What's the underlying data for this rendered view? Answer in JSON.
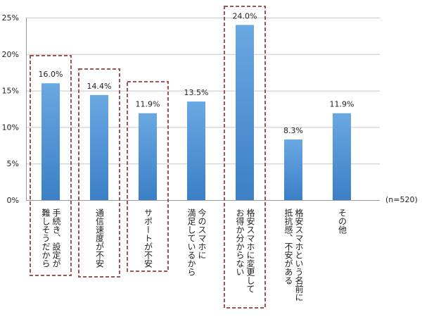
{
  "chart_data": {
    "type": "bar",
    "categories": [
      "手続き、設定が\n難しそうだから",
      "通信速度が不安",
      "サポートが不安",
      "今のスマホに\n満足しているから",
      "格安スマホに変更して\nお得か分からない",
      "格安スマホという名前に\n抵抗感、不安がある",
      "その他"
    ],
    "values": [
      16.0,
      14.4,
      11.9,
      13.5,
      24.0,
      8.3,
      11.9
    ],
    "data_labels": [
      "16.0%",
      "14.4%",
      "11.9%",
      "13.5%",
      "24.0%",
      "8.3%",
      "11.9%"
    ],
    "highlighted": [
      0,
      1,
      2,
      4
    ],
    "ylim": [
      0,
      25
    ],
    "yticks": [
      "0%",
      "5%",
      "10%",
      "15%",
      "20%",
      "25%"
    ],
    "annotation": "(n=520)",
    "grid": true,
    "bar_color": "#4a8fd4",
    "highlight_color": "#a05555"
  }
}
